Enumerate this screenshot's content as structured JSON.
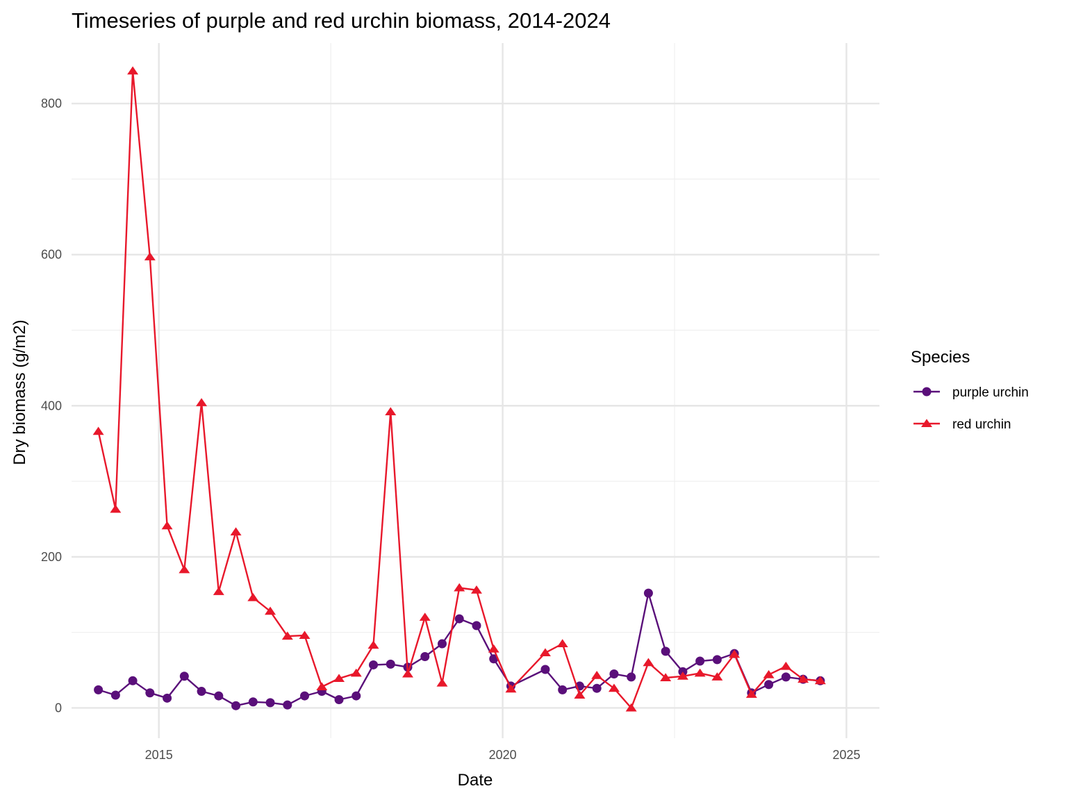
{
  "chart_data": {
    "type": "line",
    "title": "Timeseries of purple and red urchin biomass, 2014-2024",
    "xlabel": "Date",
    "ylabel": "Dry biomass (g/m2)",
    "x_scale": "date",
    "xlim": [
      2013.73,
      2025.48
    ],
    "ylim": [
      -40,
      880
    ],
    "x_ticks": [
      2015,
      2020,
      2025
    ],
    "x_tick_labels": [
      "2015",
      "2020",
      "2025"
    ],
    "y_ticks": [
      0,
      200,
      400,
      600,
      800
    ],
    "y_tick_labels": [
      "0",
      "200",
      "400",
      "600",
      "800"
    ],
    "grid": true,
    "legend": {
      "title": "Species",
      "position": "right"
    },
    "series": [
      {
        "name": "purple urchin",
        "color": "#5a0f7a",
        "marker": "circle",
        "x": [
          2014.12,
          2014.37,
          2014.62,
          2014.87,
          2015.12,
          2015.37,
          2015.62,
          2015.87,
          2016.12,
          2016.37,
          2016.62,
          2016.87,
          2017.12,
          2017.37,
          2017.62,
          2017.87,
          2018.12,
          2018.37,
          2018.62,
          2018.87,
          2019.12,
          2019.37,
          2019.62,
          2019.87,
          2020.12,
          2020.62,
          2020.87,
          2021.12,
          2021.37,
          2021.62,
          2021.87,
          2022.12,
          2022.37,
          2022.62,
          2022.87,
          2023.12,
          2023.37,
          2023.62,
          2023.87,
          2024.12,
          2024.37,
          2024.62
        ],
        "y": [
          24,
          17,
          36,
          20,
          13,
          42,
          22,
          16,
          3,
          8,
          7,
          4,
          16,
          22,
          11,
          16,
          57,
          58,
          54,
          68,
          85,
          118,
          109,
          65,
          29,
          51,
          24,
          29,
          26,
          45,
          41,
          152,
          75,
          48,
          62,
          64,
          72,
          20,
          31,
          41,
          38,
          36
        ]
      },
      {
        "name": "red urchin",
        "color": "#e8182b",
        "marker": "triangle",
        "x": [
          2014.12,
          2014.37,
          2014.62,
          2014.87,
          2015.12,
          2015.37,
          2015.62,
          2015.87,
          2016.12,
          2016.37,
          2016.62,
          2016.87,
          2017.12,
          2017.37,
          2017.62,
          2017.87,
          2018.12,
          2018.37,
          2018.62,
          2018.87,
          2019.12,
          2019.37,
          2019.62,
          2019.87,
          2020.12,
          2020.62,
          2020.87,
          2021.12,
          2021.37,
          2021.62,
          2021.87,
          2022.12,
          2022.37,
          2022.62,
          2022.87,
          2023.12,
          2023.37,
          2023.62,
          2023.87,
          2024.12,
          2024.37,
          2024.62
        ],
        "y": [
          366,
          263,
          843,
          597,
          241,
          183,
          404,
          154,
          233,
          146,
          128,
          95,
          96,
          28,
          39,
          46,
          83,
          392,
          45,
          120,
          33,
          159,
          156,
          78,
          25,
          73,
          85,
          17,
          43,
          26,
          0,
          60,
          40,
          42,
          46,
          41,
          71,
          18,
          44,
          55,
          38,
          36
        ]
      }
    ]
  }
}
